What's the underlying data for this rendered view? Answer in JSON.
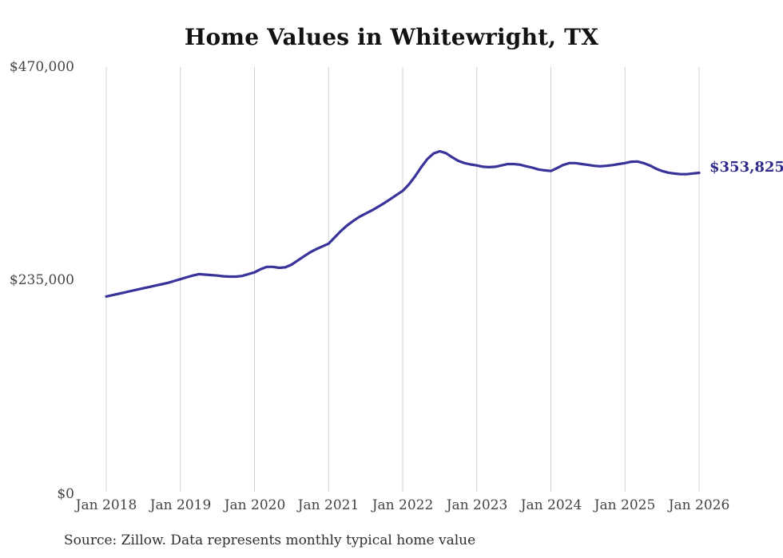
{
  "chart_data": {
    "type": "line",
    "title": "Home Values in Whitewright, TX",
    "frequency": "monthly",
    "x_tick_labels": [
      "Jan 2018",
      "Jan 2019",
      "Jan 2020",
      "Jan 2021",
      "Jan 2022",
      "Jan 2023",
      "Jan 2024",
      "Jan 2025",
      "Jan 2026"
    ],
    "y_tick_labels": [
      "$0",
      "$235,000",
      "$470,000"
    ],
    "y_tick_values": [
      0,
      235000,
      470000
    ],
    "ylim": [
      0,
      470000
    ],
    "grid": "vertical-only",
    "legend": "none",
    "end_label": "$353,825",
    "last_value": 353825,
    "series": [
      {
        "name": "Typical home value",
        "start": "Jan 2018",
        "end": "Jan 2026",
        "values": [
          218000,
          219500,
          221000,
          222500,
          224000,
          225500,
          227000,
          228500,
          230000,
          231500,
          233000,
          235000,
          237000,
          239000,
          241000,
          242500,
          242000,
          241500,
          241000,
          240200,
          239800,
          239800,
          240500,
          242500,
          244500,
          248000,
          250500,
          250500,
          249500,
          250000,
          253000,
          257500,
          262000,
          266500,
          270000,
          273000,
          276000,
          283000,
          290000,
          296000,
          301000,
          305500,
          309000,
          312500,
          316500,
          320500,
          325000,
          329500,
          334000,
          341000,
          350000,
          360000,
          369000,
          375000,
          377500,
          375500,
          371000,
          367000,
          364500,
          363000,
          362000,
          360500,
          360000,
          360500,
          362000,
          363500,
          363500,
          362800,
          361000,
          359500,
          357500,
          356500,
          355800,
          359000,
          362500,
          364500,
          364500,
          363500,
          362500,
          361500,
          361000,
          361500,
          362300,
          363500,
          364500,
          366000,
          366300,
          364500,
          362000,
          358500,
          355800,
          354000,
          353000,
          352300,
          352300,
          353100,
          353825
        ]
      }
    ],
    "colors": {
      "line": "#38329a",
      "end_label": "#2e2b8a",
      "grid": "#d2d2d2",
      "axis_text": "#444444",
      "title": "#121212",
      "source_text": "#2e2e2e",
      "background": "#ffffff"
    }
  },
  "footer": {
    "source_note": "Source: Zillow. Data represents monthly typical home value"
  }
}
